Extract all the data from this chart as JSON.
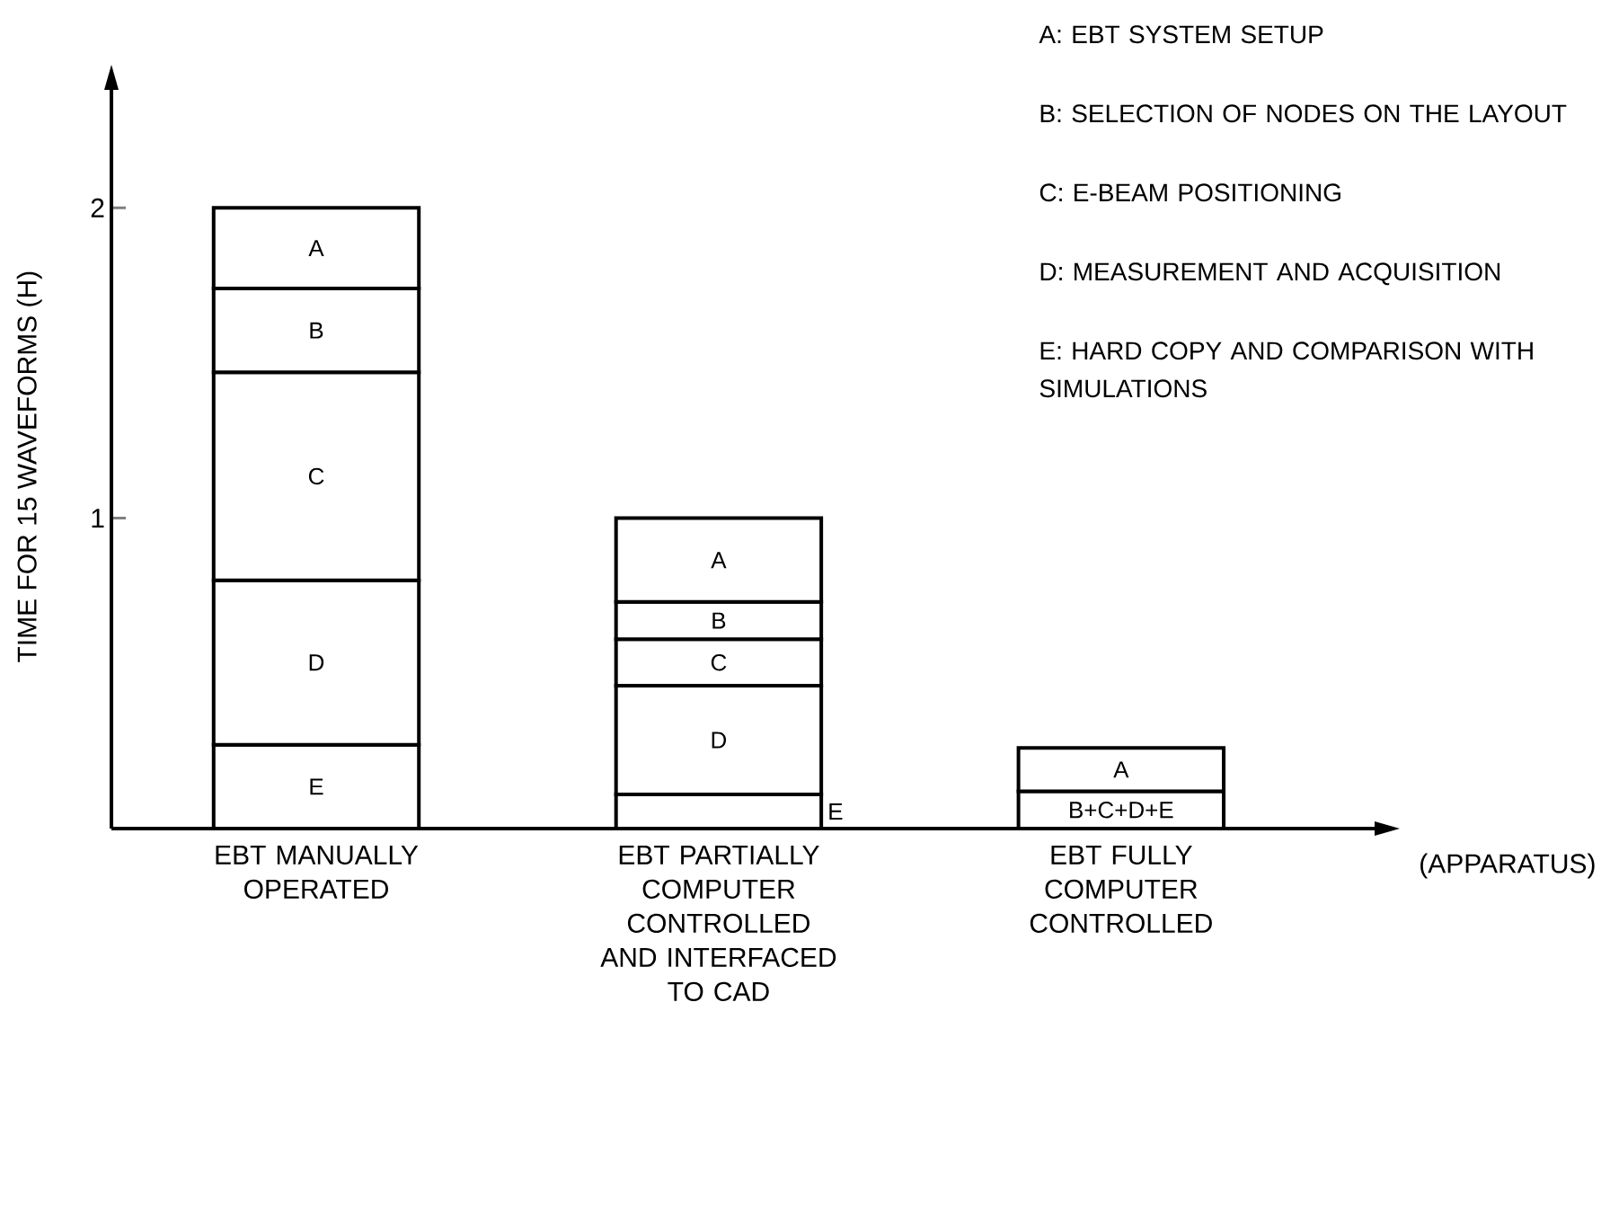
{
  "chart_data": {
    "type": "bar",
    "stacked": true,
    "ylabel": "TIME FOR 15 WAVEFORMS (H)",
    "xlabel": "(APPARATUS)",
    "categories": [
      "EBT MANUALLY OPERATED",
      "EBT PARTIALLY COMPUTER CONTROLLED AND INTERFACED TO CAD",
      "EBT FULLY COMPUTER CONTROLLED"
    ],
    "ylim": [
      0,
      2.38
    ],
    "yticks": [
      1,
      2
    ],
    "series": [
      {
        "name": "B+C+D+E",
        "color": "#ffffff",
        "values": [
          null,
          null,
          0.12
        ]
      },
      {
        "name": "E",
        "color": "#ffffff",
        "values": [
          0.27,
          0.11,
          null
        ]
      },
      {
        "name": "D",
        "color": "#ffffff",
        "values": [
          0.53,
          0.35,
          null
        ]
      },
      {
        "name": "C",
        "color": "#ffffff",
        "values": [
          0.67,
          0.15,
          null
        ]
      },
      {
        "name": "B",
        "color": "#ffffff",
        "values": [
          0.27,
          0.12,
          null
        ]
      },
      {
        "name": "A",
        "color": "#ffffff",
        "values": [
          0.26,
          0.27,
          0.14
        ]
      }
    ],
    "annotations": [
      "A: EBT SYSTEM SETUP",
      "B: SELECTION OF NODES ON THE LAYOUT",
      "C: E-BEAM POSITIONING",
      "D: MEASUREMENT AND ACQUISITION",
      "E: HARD COPY AND COMPARISON WITH SIMULATIONS"
    ]
  }
}
